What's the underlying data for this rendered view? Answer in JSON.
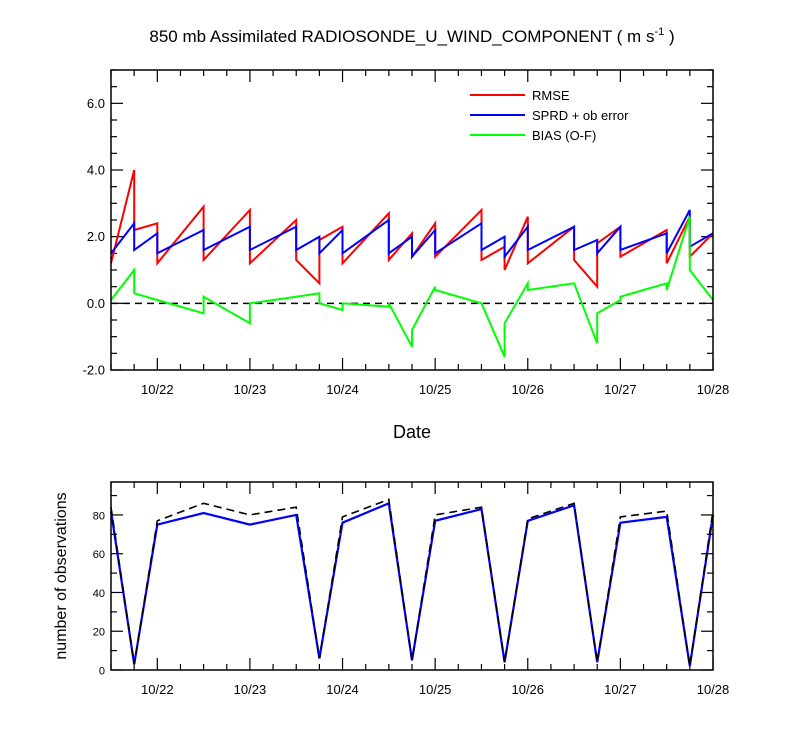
{
  "title": {
    "main": "850 mb Assimilated RADIOSONDE_U_WIND_COMPONENT ( m s",
    "sup": "-1",
    "tail": " )"
  },
  "colors": {
    "rmse": "#ff0000",
    "sprd": "#0000ff",
    "bias": "#00ff00",
    "obs_used": "#0000ff",
    "obs_total": "#000000"
  },
  "chart_data": [
    {
      "type": "line",
      "title": "850 mb Assimilated RADIOSONDE_U_WIND_COMPONENT ( m s-1 )",
      "xlabel": "Date",
      "ylabel": "",
      "xlim": [
        "10/21 12:00",
        "10/28 00:00"
      ],
      "ylim": [
        -2.0,
        7.0
      ],
      "grid": false,
      "legend": "top-right",
      "zero_line": {
        "y": 0.0,
        "style": "dashed"
      },
      "xticks": [
        "10/22",
        "10/23",
        "10/24",
        "10/25",
        "10/26",
        "10/27",
        "10/28"
      ],
      "yticks": [
        "-2.0",
        "0.0",
        "2.0",
        "4.0",
        "6.0"
      ],
      "series": [
        {
          "name": "RMSE",
          "x": [
            "10/21 12:00",
            "10/21 18:00",
            "10/21 18:00",
            "10/22 00:00",
            "10/22 00:00",
            "10/22 12:00",
            "10/22 12:00",
            "10/23 00:00",
            "10/23 00:00",
            "10/23 12:00",
            "10/23 12:00",
            "10/23 18:00",
            "10/23 18:00",
            "10/24 00:00",
            "10/24 00:00",
            "10/24 12:00",
            "10/24 12:00",
            "10/24 18:00",
            "10/24 18:00",
            "10/25 00:00",
            "10/25 00:00",
            "10/25 12:00",
            "10/25 12:00",
            "10/25 18:00",
            "10/25 18:00",
            "10/26 00:00",
            "10/26 00:00",
            "10/26 12:00",
            "10/26 12:00",
            "10/26 18:00",
            "10/26 18:00",
            "10/27 00:00",
            "10/27 00:00",
            "10/27 12:00",
            "10/27 12:00",
            "10/27 18:00",
            "10/27 18:00",
            "10/28 00:00"
          ],
          "values": [
            1.2,
            4.0,
            2.2,
            2.4,
            1.2,
            2.9,
            1.3,
            2.8,
            1.2,
            2.5,
            1.3,
            0.6,
            1.9,
            2.3,
            1.2,
            2.7,
            1.3,
            2.1,
            1.4,
            2.4,
            1.4,
            2.8,
            1.3,
            1.7,
            1.0,
            2.6,
            1.2,
            2.3,
            1.3,
            0.5,
            1.8,
            2.3,
            1.4,
            2.2,
            1.2,
            2.6,
            1.4,
            2.1
          ]
        },
        {
          "name": "SPRD + ob error",
          "x": [
            "10/21 12:00",
            "10/21 18:00",
            "10/21 18:00",
            "10/22 00:00",
            "10/22 00:00",
            "10/22 12:00",
            "10/22 12:00",
            "10/23 00:00",
            "10/23 00:00",
            "10/23 12:00",
            "10/23 12:00",
            "10/23 18:00",
            "10/23 18:00",
            "10/24 00:00",
            "10/24 00:00",
            "10/24 12:00",
            "10/24 12:00",
            "10/24 18:00",
            "10/24 18:00",
            "10/25 00:00",
            "10/25 00:00",
            "10/25 12:00",
            "10/25 12:00",
            "10/25 18:00",
            "10/25 18:00",
            "10/26 00:00",
            "10/26 00:00",
            "10/26 12:00",
            "10/26 12:00",
            "10/26 18:00",
            "10/26 18:00",
            "10/27 00:00",
            "10/27 00:00",
            "10/27 12:00",
            "10/27 12:00",
            "10/27 18:00",
            "10/27 18:00",
            "10/28 00:00"
          ],
          "values": [
            1.5,
            2.4,
            1.6,
            2.1,
            1.5,
            2.2,
            1.6,
            2.3,
            1.6,
            2.3,
            1.6,
            2.0,
            1.5,
            2.2,
            1.5,
            2.5,
            1.5,
            2.0,
            1.4,
            2.2,
            1.5,
            2.4,
            1.6,
            2.0,
            1.4,
            2.3,
            1.6,
            2.3,
            1.6,
            1.9,
            1.5,
            2.3,
            1.6,
            2.1,
            1.5,
            2.8,
            1.7,
            2.1
          ]
        },
        {
          "name": "BIAS (O-F)",
          "x": [
            "10/21 12:00",
            "10/21 18:00",
            "10/21 18:00",
            "10/22 00:00",
            "10/22 00:00",
            "10/22 12:00",
            "10/22 12:00",
            "10/23 00:00",
            "10/23 00:00",
            "10/23 12:00",
            "10/23 12:00",
            "10/23 18:00",
            "10/23 18:00",
            "10/24 00:00",
            "10/24 00:00",
            "10/24 12:00",
            "10/24 12:00",
            "10/24 18:00",
            "10/24 18:00",
            "10/25 00:00",
            "10/25 00:00",
            "10/25 12:00",
            "10/25 12:00",
            "10/25 18:00",
            "10/25 18:00",
            "10/26 00:00",
            "10/26 00:00",
            "10/26 12:00",
            "10/26 12:00",
            "10/26 18:00",
            "10/26 18:00",
            "10/27 00:00",
            "10/27 00:00",
            "10/27 12:00",
            "10/27 12:00",
            "10/27 18:00",
            "10/27 18:00",
            "10/28 00:00"
          ],
          "values": [
            0.1,
            1.0,
            0.3,
            0.1,
            0.1,
            -0.3,
            0.2,
            -0.6,
            0.0,
            0.2,
            0.2,
            0.3,
            0.0,
            -0.2,
            0.0,
            -0.1,
            0.0,
            -1.3,
            -0.8,
            0.5,
            0.4,
            0.0,
            0.0,
            -1.6,
            -0.6,
            0.6,
            0.4,
            0.6,
            0.6,
            -1.2,
            -0.3,
            0.1,
            0.2,
            0.6,
            0.4,
            2.6,
            1.0,
            0.1
          ]
        }
      ]
    },
    {
      "type": "line",
      "title": "",
      "xlabel": "",
      "ylabel": "number of observations",
      "xlim": [
        "10/21 12:00",
        "10/28 00:00"
      ],
      "ylim": [
        0,
        97
      ],
      "grid": false,
      "xticks": [
        "10/22",
        "10/23",
        "10/24",
        "10/25",
        "10/26",
        "10/27",
        "10/28"
      ],
      "yticks": [
        "0",
        "20",
        "40",
        "60",
        "80"
      ],
      "series": [
        {
          "style": "solid",
          "x": [
            "10/21 12:00",
            "10/21 18:00",
            "10/22 00:00",
            "10/22 12:00",
            "10/23 00:00",
            "10/23 12:00",
            "10/23 18:00",
            "10/24 00:00",
            "10/24 12:00",
            "10/24 18:00",
            "10/25 00:00",
            "10/25 12:00",
            "10/25 18:00",
            "10/26 00:00",
            "10/26 12:00",
            "10/26 18:00",
            "10/27 00:00",
            "10/27 12:00",
            "10/27 18:00",
            "10/28 00:00"
          ],
          "values": [
            82,
            3,
            75,
            81,
            75,
            80,
            6,
            76,
            86,
            5,
            77,
            83,
            4,
            77,
            85,
            4,
            76,
            79,
            2,
            80
          ]
        },
        {
          "style": "dashed",
          "x": [
            "10/21 12:00",
            "10/21 18:00",
            "10/22 00:00",
            "10/22 12:00",
            "10/23 00:00",
            "10/23 12:00",
            "10/23 18:00",
            "10/24 00:00",
            "10/24 12:00",
            "10/24 18:00",
            "10/25 00:00",
            "10/25 12:00",
            "10/25 18:00",
            "10/26 00:00",
            "10/26 12:00",
            "10/26 18:00",
            "10/27 00:00",
            "10/27 12:00",
            "10/27 18:00",
            "10/28 00:00"
          ],
          "values": [
            84,
            3,
            77,
            86,
            80,
            84,
            6,
            79,
            88,
            5,
            80,
            84,
            4,
            78,
            86,
            4,
            79,
            82,
            2,
            82
          ]
        }
      ]
    }
  ]
}
